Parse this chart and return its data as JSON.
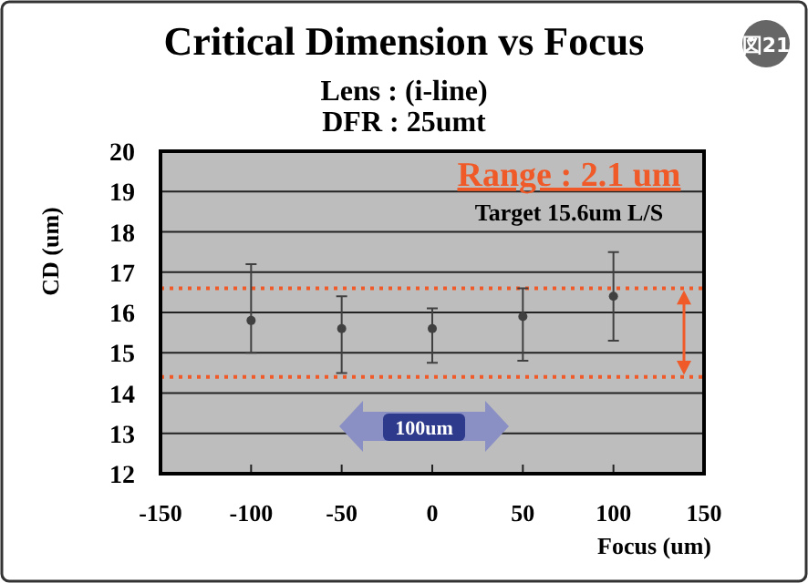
{
  "chart_data": {
    "type": "scatter",
    "title": "Critical Dimension vs Focus",
    "subtitle": "Lens : (i-line)\nDFR : 25umt",
    "xlabel": "Focus (um)",
    "ylabel": "CD (um)",
    "x": [
      -100,
      -50,
      0,
      50,
      100
    ],
    "series": [
      {
        "color": "#404040",
        "values": [
          15.8,
          15.6,
          15.6,
          15.9,
          16.4
        ],
        "errors": [
          [
            15.0,
            17.2
          ],
          [
            14.5,
            16.4
          ],
          [
            14.75,
            16.1
          ],
          [
            14.8,
            16.6
          ],
          [
            15.3,
            17.5
          ]
        ]
      }
    ],
    "xlim": [
      -150,
      150
    ],
    "xticks": [
      -150,
      -100,
      -50,
      0,
      50,
      100,
      150
    ],
    "ylim": [
      12,
      20
    ],
    "yticks": [
      12,
      13,
      14,
      15,
      16,
      17,
      18,
      19,
      20
    ],
    "grid": "y",
    "marker": "circle",
    "ref_lines": [
      {
        "axis": "y",
        "value": 16.6,
        "color": "#f05a28",
        "line_style": "dotted"
      },
      {
        "axis": "y",
        "value": 14.4,
        "color": "#f05a28",
        "line_style": "dotted"
      }
    ],
    "annotations": [
      "Range : 2.1 um",
      "Target 15.6um L/S",
      "100um",
      "図21"
    ]
  }
}
